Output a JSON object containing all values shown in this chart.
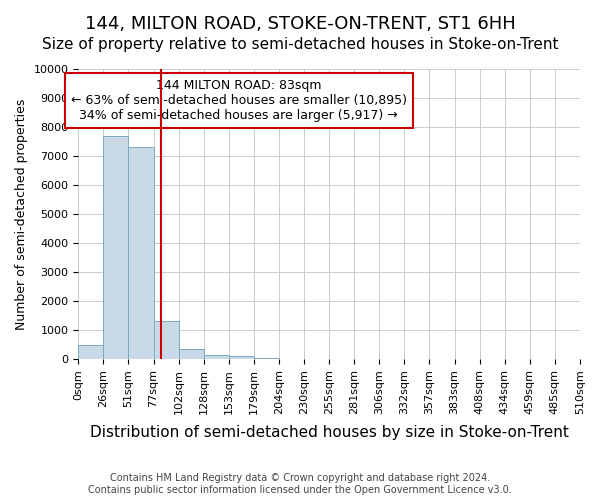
{
  "title": "144, MILTON ROAD, STOKE-ON-TRENT, ST1 6HH",
  "subtitle": "Size of property relative to semi-detached houses in Stoke-on-Trent",
  "xlabel": "Distribution of semi-detached houses by size in Stoke-on-Trent",
  "ylabel": "Number of semi-detached properties",
  "footer_line1": "Contains HM Land Registry data © Crown copyright and database right 2024.",
  "footer_line2": "Contains public sector information licensed under the Open Government Licence v3.0.",
  "bar_values": [
    500,
    7700,
    7300,
    1300,
    350,
    150,
    100,
    30,
    5,
    0,
    0,
    0,
    0,
    0,
    0,
    0,
    0,
    0,
    0,
    0
  ],
  "bar_labels": [
    "0sqm",
    "26sqm",
    "51sqm",
    "77sqm",
    "102sqm",
    "128sqm",
    "153sqm",
    "179sqm",
    "204sqm",
    "230sqm",
    "255sqm",
    "281sqm",
    "306sqm",
    "332sqm",
    "357sqm",
    "383sqm",
    "408sqm",
    "434sqm",
    "459sqm",
    "485sqm",
    "510sqm"
  ],
  "bar_color": "#c9d9e8",
  "bar_edge_color": "#7aabbf",
  "grid_color": "#cccccc",
  "ylim": [
    0,
    10000
  ],
  "yticks": [
    0,
    1000,
    2000,
    3000,
    4000,
    5000,
    6000,
    7000,
    8000,
    9000,
    10000
  ],
  "property_line_x": 3.3,
  "property_line_color": "#cc0000",
  "annotation_text": "144 MILTON ROAD: 83sqm\n← 63% of semi-detached houses are smaller (10,895)\n34% of semi-detached houses are larger (5,917) →",
  "annotation_box_color": "#ffffff",
  "annotation_box_edge_color": "#cc0000",
  "title_fontsize": 13,
  "subtitle_fontsize": 11,
  "xlabel_fontsize": 11,
  "ylabel_fontsize": 9,
  "tick_fontsize": 8,
  "annotation_fontsize": 9,
  "footer_fontsize": 7
}
